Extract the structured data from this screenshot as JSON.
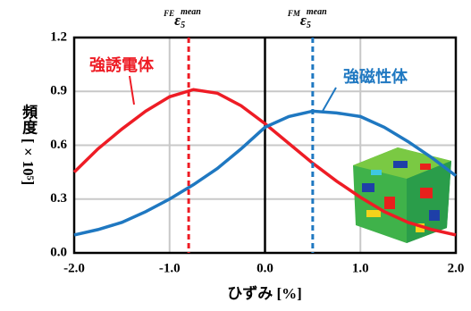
{
  "chart_data": {
    "type": "line",
    "xlabel": "ひずみ [%]",
    "ylabel": "頻度 [×10⁵]",
    "xlim": [
      -2,
      2
    ],
    "ylim": [
      0,
      1.2
    ],
    "xticks": [
      {
        "value": -2,
        "label": "-2.0"
      },
      {
        "value": -1,
        "label": "-1.0"
      },
      {
        "value": 0,
        "label": "0.0"
      },
      {
        "value": 1,
        "label": "1.0"
      },
      {
        "value": 2,
        "label": "2.0"
      }
    ],
    "yticks": [
      {
        "value": 0,
        "label": "0.0"
      },
      0.3,
      0.6,
      0.9,
      1.2
    ],
    "grid": true,
    "x": [
      -2,
      -1.75,
      -1.5,
      -1.25,
      -1,
      -0.75,
      -0.5,
      -0.25,
      0,
      0.25,
      0.5,
      0.75,
      1,
      1.25,
      1.5,
      1.75,
      2
    ],
    "series": [
      {
        "name": "強誘電体",
        "color": "#ee1c25",
        "values": [
          0.45,
          0.58,
          0.69,
          0.79,
          0.87,
          0.91,
          0.89,
          0.82,
          0.72,
          0.61,
          0.5,
          0.4,
          0.31,
          0.23,
          0.17,
          0.13,
          0.1
        ]
      },
      {
        "name": "強磁性体",
        "color": "#1f78c1",
        "values": [
          0.1,
          0.13,
          0.17,
          0.23,
          0.3,
          0.38,
          0.47,
          0.58,
          0.7,
          0.76,
          0.79,
          0.78,
          0.76,
          0.7,
          0.62,
          0.53,
          0.43
        ]
      }
    ],
    "vlines": [
      {
        "x": -0.8,
        "color": "#ee1c25",
        "pre": "FE",
        "sym": "ε",
        "sub": "5",
        "sup": "mean"
      },
      {
        "x": 0.5,
        "color": "#1f78c1",
        "pre": "FM",
        "sym": "ε",
        "sub": "5",
        "sup": "mean"
      }
    ]
  }
}
